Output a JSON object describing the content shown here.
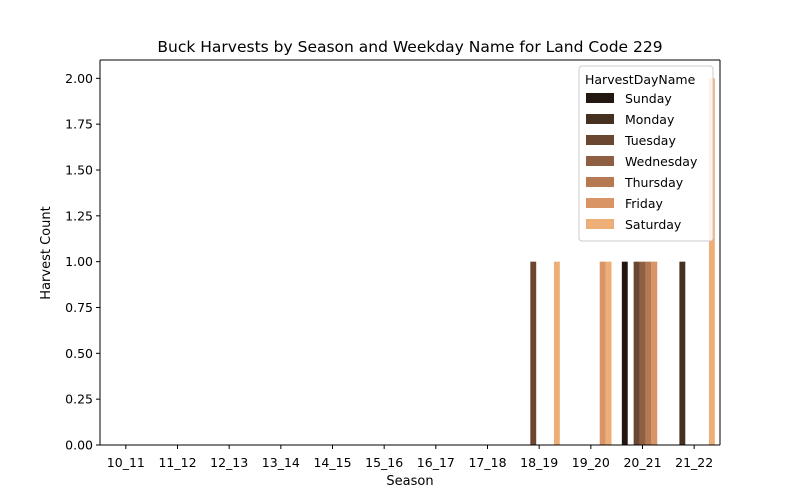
{
  "chart_data": {
    "type": "bar",
    "title": "Buck Harvests by Season and Weekday Name for Land Code 229",
    "xlabel": "Season",
    "ylabel": "Harvest Count",
    "ylim": [
      0,
      2.1
    ],
    "y_ticks": [
      "0.00",
      "0.25",
      "0.50",
      "0.75",
      "1.00",
      "1.25",
      "1.50",
      "1.75",
      "2.00"
    ],
    "y_tick_values": [
      0,
      0.25,
      0.5,
      0.75,
      1.0,
      1.25,
      1.5,
      1.75,
      2.0
    ],
    "categories": [
      "10_11",
      "11_12",
      "12_13",
      "13_14",
      "14_15",
      "15_16",
      "16_17",
      "17_18",
      "18_19",
      "19_20",
      "20_21",
      "21_22"
    ],
    "grid": false,
    "legend_title": "HarvestDayName",
    "legend_position": "top-right",
    "series": [
      {
        "name": "Sunday",
        "color": "#231811",
        "values": [
          0,
          0,
          0,
          0,
          0,
          0,
          0,
          0,
          0,
          0,
          1,
          0
        ]
      },
      {
        "name": "Monday",
        "color": "#46301f",
        "values": [
          0,
          0,
          0,
          0,
          0,
          0,
          0,
          0,
          0,
          0,
          0,
          1
        ]
      },
      {
        "name": "Tuesday",
        "color": "#6b4731",
        "values": [
          0,
          0,
          0,
          0,
          0,
          0,
          0,
          0,
          1,
          0,
          1,
          0
        ]
      },
      {
        "name": "Wednesday",
        "color": "#8e5f42",
        "values": [
          0,
          0,
          0,
          0,
          0,
          0,
          0,
          0,
          0,
          0,
          1,
          0
        ]
      },
      {
        "name": "Thursday",
        "color": "#b67a53",
        "values": [
          0,
          0,
          0,
          0,
          0,
          0,
          0,
          0,
          0,
          0,
          1,
          0
        ]
      },
      {
        "name": "Friday",
        "color": "#d99566",
        "values": [
          0,
          0,
          0,
          0,
          0,
          0,
          0,
          0,
          0,
          1,
          1,
          0
        ]
      },
      {
        "name": "Saturday",
        "color": "#eeae78",
        "values": [
          0,
          0,
          0,
          0,
          0,
          0,
          0,
          0,
          1,
          1,
          0,
          2
        ]
      }
    ]
  }
}
